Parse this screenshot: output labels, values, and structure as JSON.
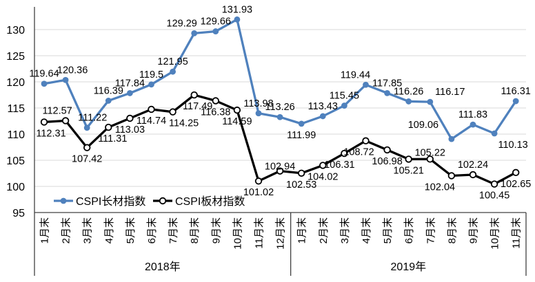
{
  "chart_data": {
    "type": "line",
    "title": "",
    "y_axis": {
      "min": 95,
      "max": 130,
      "step": 5,
      "ticks": [
        95,
        100,
        105,
        110,
        115,
        120,
        125,
        130
      ]
    },
    "x_groups": [
      {
        "year_label": "2018年",
        "months": [
          "1月末",
          "2月末",
          "3月末",
          "4月末",
          "5月末",
          "6月末",
          "7月末",
          "8月末",
          "9月末",
          "10月末",
          "11月末",
          "12月末"
        ]
      },
      {
        "year_label": "2019年",
        "months": [
          "1月末",
          "2月末",
          "3月末",
          "4月末",
          "5月末",
          "6月末",
          "7月末",
          "8月末",
          "9月末",
          "10月末",
          "11月末"
        ]
      }
    ],
    "grid": true,
    "legend_position": "inside-bottom-left",
    "series": [
      {
        "name": "CSPI长材指数",
        "color": "#4F81BD",
        "marker": "filled-circle",
        "values": [
          119.64,
          120.36,
          111.22,
          116.39,
          117.84,
          119.5,
          121.95,
          129.29,
          129.66,
          131.93,
          113.98,
          113.26,
          111.99,
          113.43,
          115.45,
          119.44,
          117.85,
          116.26,
          116.17,
          109.06,
          111.83,
          110.13,
          116.31
        ],
        "label_layout": [
          {
            "pos": "above"
          },
          {
            "pos": "above",
            "dx": 10
          },
          {
            "pos": "above",
            "dx": 8
          },
          {
            "pos": "above"
          },
          {
            "pos": "above"
          },
          {
            "pos": "above"
          },
          {
            "pos": "above"
          },
          {
            "pos": "above",
            "dx": -18
          },
          {
            "pos": "above"
          },
          {
            "pos": "above"
          },
          {
            "pos": "above"
          },
          {
            "pos": "above"
          },
          {
            "pos": "below"
          },
          {
            "pos": "above"
          },
          {
            "pos": "above"
          },
          {
            "pos": "above",
            "dx": -15
          },
          {
            "pos": "above"
          },
          {
            "pos": "above"
          },
          {
            "pos": "above",
            "dx": 29
          },
          {
            "pos": "above",
            "dx": -41,
            "dy": -6
          },
          {
            "pos": "above"
          },
          {
            "pos": "below",
            "dx": 27
          },
          {
            "pos": "above"
          }
        ]
      },
      {
        "name": "CSPI板材指数",
        "color": "#000000",
        "marker": "open-circle",
        "values": [
          112.31,
          112.57,
          107.42,
          111.31,
          113.03,
          114.74,
          114.25,
          117.49,
          116.38,
          114.59,
          101.02,
          102.94,
          102.53,
          104.02,
          106.31,
          108.72,
          106.98,
          105.21,
          105.22,
          102.04,
          102.24,
          100.45,
          102.65
        ],
        "label_layout": [
          {
            "pos": "below",
            "dx": 10
          },
          {
            "pos": "above",
            "dx": -12
          },
          {
            "pos": "below"
          },
          {
            "pos": "below",
            "dx": 6
          },
          {
            "pos": "below"
          },
          {
            "pos": "below"
          },
          {
            "pos": "below",
            "dx": 16
          },
          {
            "pos": "below",
            "dx": 5
          },
          {
            "pos": "below"
          },
          {
            "pos": "below"
          },
          {
            "pos": "below"
          },
          {
            "pos": "above",
            "dy": 8
          },
          {
            "pos": "below"
          },
          {
            "pos": "below"
          },
          {
            "pos": "below",
            "dx": -7
          },
          {
            "pos": "below",
            "dx": -10
          },
          {
            "pos": "below"
          },
          {
            "pos": "below"
          },
          {
            "pos": "above",
            "dy": 5
          },
          {
            "pos": "below",
            "dx": -17
          },
          {
            "pos": "above"
          },
          {
            "pos": "below"
          },
          {
            "pos": "below"
          }
        ]
      }
    ],
    "colors": {
      "grid": "#d9d9d9",
      "axis": "#404040",
      "label_text": "#000000"
    }
  }
}
